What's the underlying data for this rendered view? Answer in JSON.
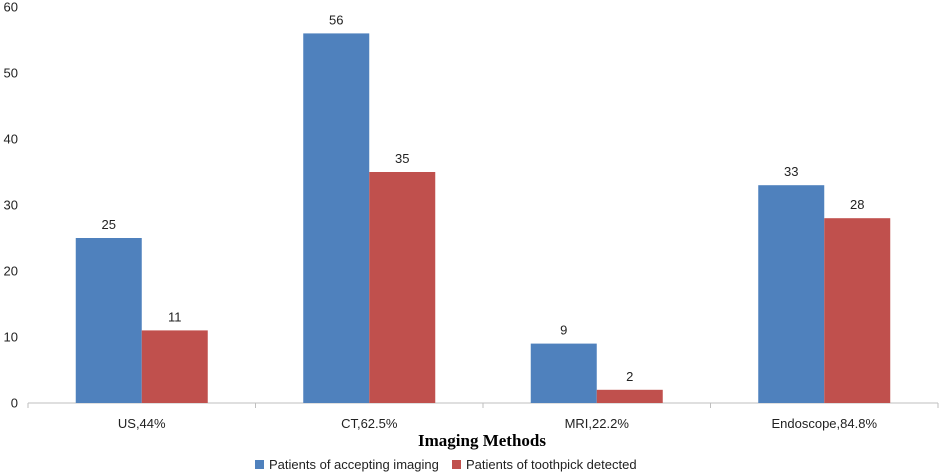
{
  "chart_data": {
    "type": "bar",
    "categories": [
      "US,44%",
      "CT,62.5%",
      "MRI,22.2%",
      "Endoscope,84.8%"
    ],
    "series": [
      {
        "name": "Patients of accepting imaging",
        "values": [
          25,
          56,
          9,
          33
        ],
        "color": "#4f81bd"
      },
      {
        "name": "Patients of toothpick detected",
        "values": [
          11,
          35,
          2,
          28
        ],
        "color": "#c0504d"
      }
    ],
    "title": "",
    "xlabel": "Imaging Methods",
    "ylabel": "",
    "ylim": [
      0,
      60
    ],
    "yticks": [
      0,
      10,
      20,
      30,
      40,
      50,
      60
    ],
    "grid": false,
    "legend_position": "bottom"
  }
}
